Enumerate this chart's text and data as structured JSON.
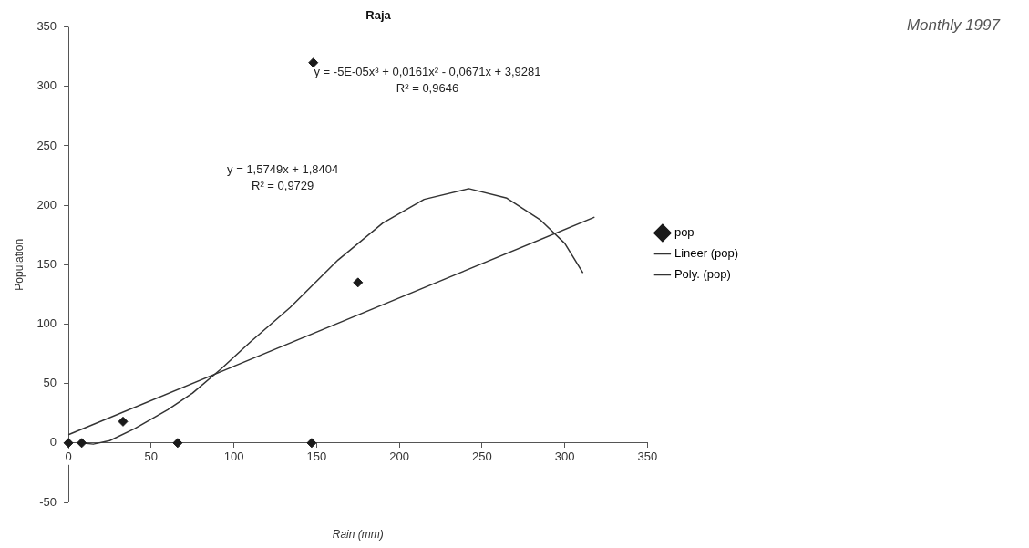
{
  "chart_data": {
    "type": "scatter",
    "title": "Raja",
    "xlabel": "Rain (mm)",
    "ylabel": "Population",
    "xlim": [
      0,
      350
    ],
    "xticks": [
      0,
      50,
      100,
      150,
      200,
      250,
      300,
      350
    ],
    "ylim": [
      -50,
      350
    ],
    "yticks": [
      -50,
      0,
      50,
      100,
      150,
      200,
      250,
      300,
      350
    ],
    "grid": false,
    "legend": "right",
    "marker": "diamond",
    "series": [
      {
        "name": "pop",
        "type": "scatter",
        "color": "#1a1a1a",
        "x": [
          0,
          8,
          33,
          66,
          147,
          148,
          175
        ],
        "values": [
          0,
          0,
          18,
          0,
          0,
          320,
          135
        ]
      },
      {
        "name": "Lineer (pop)",
        "type": "line",
        "marker": "none",
        "color": "#333333",
        "x": [
          0,
          318
        ],
        "values": [
          7,
          190
        ]
      },
      {
        "name": "Poly. (pop)",
        "type": "line",
        "marker": "none",
        "color": "#333333",
        "x": [
          8,
          15,
          25,
          40,
          60,
          75,
          92,
          110,
          134,
          163,
          190,
          215,
          242,
          265,
          285,
          300,
          311
        ],
        "values": [
          0,
          -1,
          2,
          12,
          28,
          42,
          62,
          85,
          114,
          154,
          185,
          205,
          214,
          206,
          188,
          168,
          143
        ]
      }
    ],
    "annotations": [
      "y = -5E-05x³ + 0,0161x² - 0,0671x + 3,9281",
      "R² = 0,9646",
      "y = 1,5749x + 1,8404",
      "R² = 0,9729",
      "Monthly 1997"
    ]
  }
}
